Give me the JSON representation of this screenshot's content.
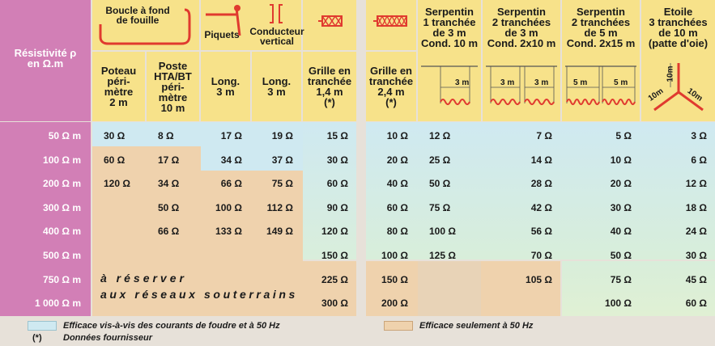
{
  "header": {
    "resistivity_label": "Résistivité ρ\nen Ω.m",
    "top_groups": {
      "boucle": "Boucle à fond\nde fouille",
      "piquets": "Piquets",
      "conducteur": "Conducteur\nvertical"
    },
    "columns": [
      "Poteau\npéri-\nmètre\n2 m",
      "Poste\nHTA/BT\npéri-\nmètre\n10 m",
      "Long.\n3 m",
      "Long.\n3 m",
      "Grille en\ntranchée\n1,4 m\n(*)",
      "Grille en\ntranchée\n2,4 m\n(*)",
      "Serpentin\n1 tranchée\nde 3 m\nCond. 10 m",
      "Serpentin\n2 tranchées\nde 3 m\nCond. 2x10 m",
      "Serpentin\n2 tranchées\nde 5 m\nCond. 2x15 m",
      "Etoile\n3 tranchées\nde 10 m\n(patte d'oie)"
    ],
    "diagram_labels": {
      "s2_dim": "3 m",
      "s3_dim_a": "3 m",
      "s3_dim_b": "3 m",
      "s4_dim_a": "5 m",
      "s4_dim_b": "5 m",
      "star_a": "10m",
      "star_b": "10m",
      "star_c": "10m"
    }
  },
  "rows": [
    {
      "res": "50 Ω m",
      "v": [
        "30 Ω",
        "8 Ω",
        "17 Ω",
        "19 Ω",
        "15 Ω",
        "10 Ω",
        "12 Ω",
        "7 Ω",
        "5 Ω",
        "3 Ω"
      ]
    },
    {
      "res": "100 Ω m",
      "v": [
        "60 Ω",
        "17 Ω",
        "34 Ω",
        "37 Ω",
        "30 Ω",
        "20 Ω",
        "25 Ω",
        "14 Ω",
        "10 Ω",
        "6 Ω"
      ]
    },
    {
      "res": "200 Ω m",
      "v": [
        "120 Ω",
        "34 Ω",
        "66 Ω",
        "75 Ω",
        "60 Ω",
        "40 Ω",
        "50 Ω",
        "28 Ω",
        "20 Ω",
        "12 Ω"
      ]
    },
    {
      "res": "300 Ω m",
      "v": [
        "",
        "50 Ω",
        "100 Ω",
        "112 Ω",
        "90 Ω",
        "60 Ω",
        "75 Ω",
        "42 Ω",
        "30 Ω",
        "18 Ω"
      ]
    },
    {
      "res": "400 Ω m",
      "v": [
        "",
        "66 Ω",
        "133 Ω",
        "149 Ω",
        "120 Ω",
        "80 Ω",
        "100 Ω",
        "56 Ω",
        "40 Ω",
        "24 Ω"
      ]
    },
    {
      "res": "500 Ω m",
      "v": [
        "",
        "",
        "",
        "",
        "150 Ω",
        "100 Ω",
        "125 Ω",
        "70 Ω",
        "50 Ω",
        "30 Ω"
      ]
    },
    {
      "res": "750 Ω m",
      "v": [
        "",
        "",
        "",
        "",
        "225 Ω",
        "150 Ω",
        "",
        "105 Ω",
        "75 Ω",
        "45 Ω"
      ]
    },
    {
      "res": "1 000 Ω m",
      "v": [
        "",
        "",
        "",
        "",
        "300 Ω",
        "200 Ω",
        "",
        "",
        "100 Ω",
        "60 Ω"
      ]
    }
  ],
  "reserve_text": {
    "line1": "à réserver",
    "line2": "aux réseaux souterrains"
  },
  "legend": {
    "blue_text": "Efficace vis-à-vis des courants de foudre et à 50 Hz",
    "star_mark": "(*)",
    "star_text": "Données fournisseur",
    "beige_text": "Efficace seulement à 50 Hz"
  },
  "colors": {
    "pink": "#d27fb6",
    "header_yellow": "#f7e28a",
    "blue_fill": "#cfe9f1",
    "beige_fill": "#efd2ad",
    "diagram_red": "#e03a2f"
  }
}
